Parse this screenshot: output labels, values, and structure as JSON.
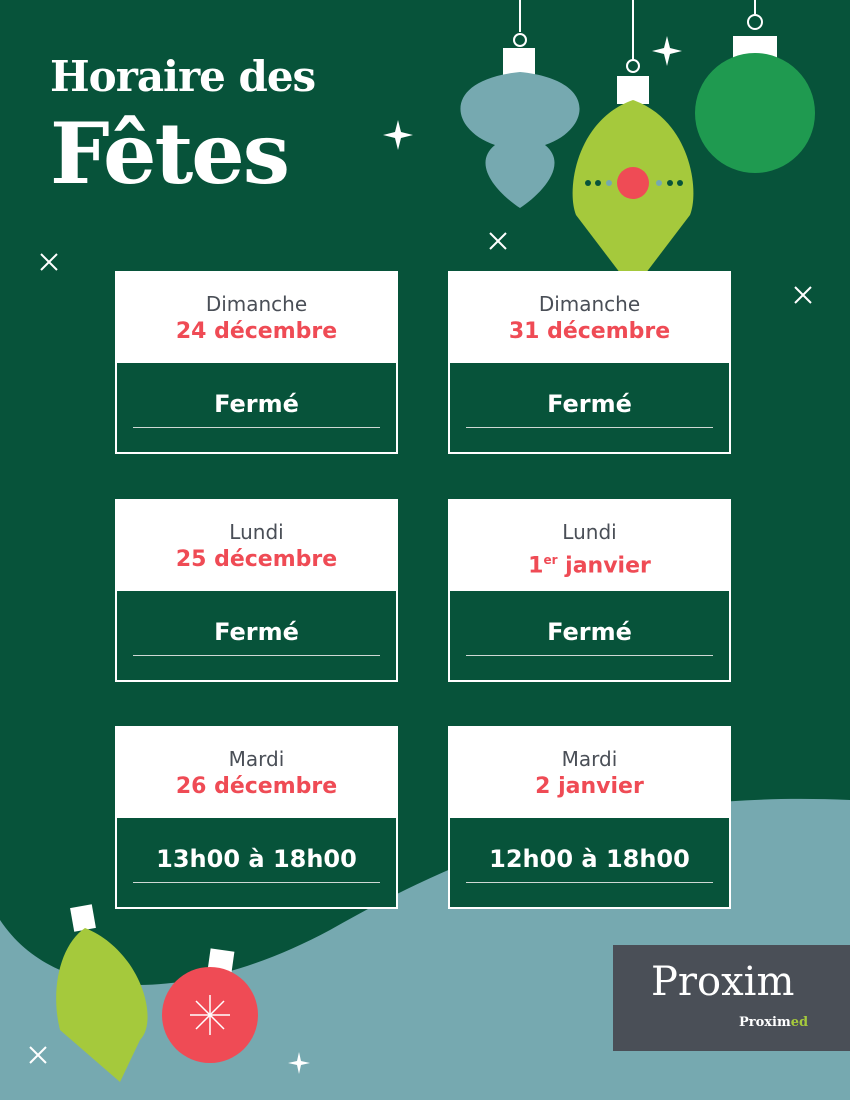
{
  "header": {
    "line1": "Horaire des",
    "line2": "Fêtes"
  },
  "schedule": [
    {
      "day": "Dimanche",
      "date": "24 décembre",
      "hours": "Fermé"
    },
    {
      "day": "Dimanche",
      "date": "31 décembre",
      "hours": "Fermé"
    },
    {
      "day": "Lundi",
      "date": "25 décembre",
      "hours": "Fermé"
    },
    {
      "day": "Lundi",
      "date_num": "1",
      "date_sup": "er",
      "date_rest": " janvier",
      "hours": "Fermé"
    },
    {
      "day": "Mardi",
      "date": "26 décembre",
      "hours": "13h00 à 18h00"
    },
    {
      "day": "Mardi",
      "date": "2 janvier",
      "hours": "12h00 à 18h00"
    }
  ],
  "logo": {
    "main": "Proxim",
    "sub_a": "Proxim",
    "sub_b": "ed"
  },
  "colors": {
    "background": "#07533a",
    "accent_red": "#ef4b55",
    "wave": "#76a9b0",
    "ornament_green": "#a5c93c",
    "logo_bg": "#4a4f57"
  }
}
